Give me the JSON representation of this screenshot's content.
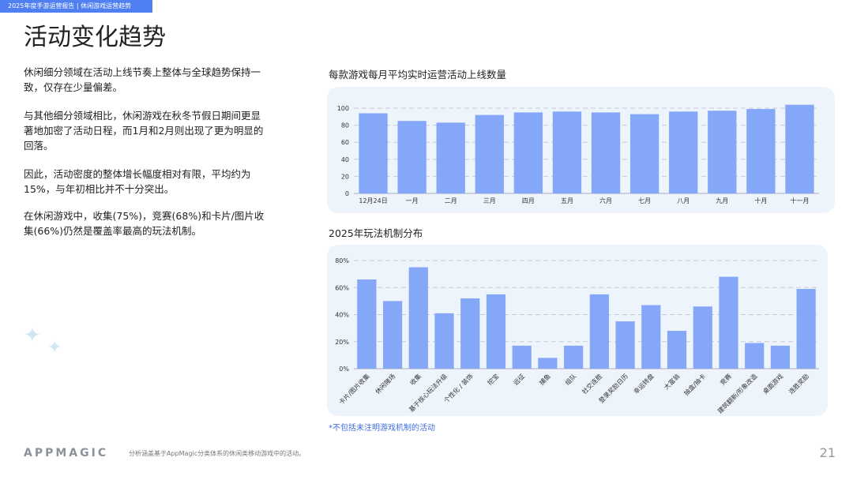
{
  "header": {
    "report_tag": "2025年度手游运营报告 | 休闲游戏运营趋势",
    "title": "活动变化趋势"
  },
  "paragraphs": [
    "休闲细分领域在活动上线节奏上整体与全球趋势保持一致，仅存在少量偏差。",
    "与其他细分领域相比，休闲游戏在秋冬节假日期间更显著地加密了活动日程，而1月和2月则出现了更为明显的回落。",
    "因此，活动密度的整体增长幅度相对有限，平均约为15%，与年初相比并不十分突出。",
    "在休闲游戏中，收集(75%)，竞赛(68%)和卡片/图片收集(66%)仍然是覆盖率最高的玩法机制。"
  ],
  "footer": {
    "logo": "APPMAGIC",
    "note": "分析涵盖基于AppMagic分类体系的休闲类移动游戏中的活动。",
    "page": "21"
  },
  "colors": {
    "bar": "#84a7f8",
    "accent": "#4f7ff0",
    "panel": "#eef4fc"
  },
  "chart_data": [
    {
      "type": "bar",
      "title": "每款游戏每月平均实时运营活动上线数量",
      "categories": [
        "12月24日",
        "一月",
        "二月",
        "三月",
        "四月",
        "五月",
        "六月",
        "七月",
        "八月",
        "九月",
        "十月",
        "十一月"
      ],
      "values": [
        94,
        85,
        83,
        92,
        95,
        96,
        95,
        93,
        96,
        97,
        99,
        104
      ],
      "ylim": [
        0,
        100
      ],
      "yticks": [
        "0",
        "20",
        "40",
        "60",
        "80",
        "100"
      ],
      "grid": true
    },
    {
      "type": "bar",
      "title": "2025年玩法机制分布",
      "categories": [
        "卡片/图片收集",
        "休闲赌场",
        "收集",
        "基于核心玩法升级",
        "个性化 / 装饰",
        "挖宝",
        "远征",
        "捕鱼",
        "组队",
        "社交连胜",
        "登录奖励日历",
        "幸运转盘",
        "大富翁",
        "抽盒/抽卡",
        "竞赛",
        "建筑翻新/形象改造",
        "桌面游戏",
        "连胜奖励"
      ],
      "values": [
        66,
        50,
        75,
        41,
        52,
        55,
        17,
        8,
        17,
        55,
        35,
        47,
        28,
        46,
        68,
        19,
        17,
        59
      ],
      "ylim": [
        0,
        80
      ],
      "yticks": [
        "0%",
        "20%",
        "40%",
        "60%",
        "80%"
      ],
      "grid": true,
      "footnote": "*不包括未注明游戏机制的活动"
    }
  ]
}
